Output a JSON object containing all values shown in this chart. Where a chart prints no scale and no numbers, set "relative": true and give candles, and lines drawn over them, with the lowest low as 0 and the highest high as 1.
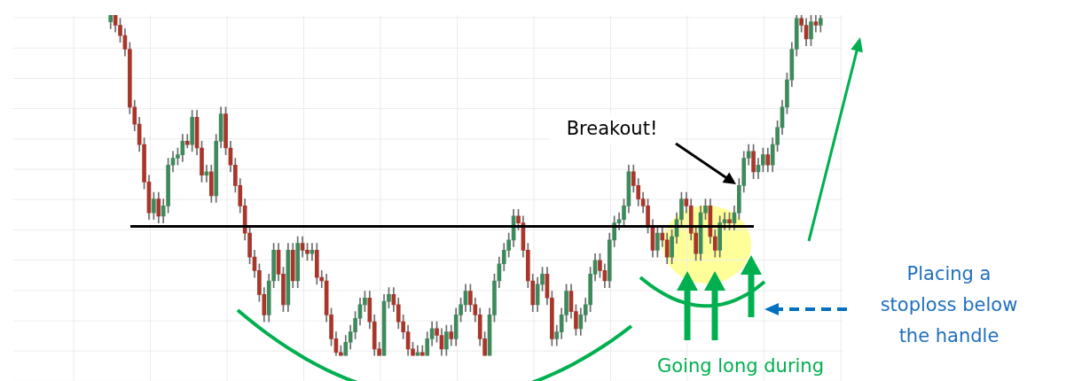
{
  "chart_data": {
    "type": "candlestick",
    "relative": true,
    "grid": true,
    "categories": [
      null,
      null,
      null,
      null,
      null,
      null,
      null,
      null,
      null,
      null,
      null,
      null,
      null,
      null,
      null,
      null,
      null,
      null,
      null,
      null,
      null,
      null,
      null,
      null,
      null,
      null,
      null,
      null,
      null,
      null,
      null,
      null,
      null,
      null,
      null,
      null,
      null,
      null,
      null,
      null,
      null,
      null,
      null,
      null,
      null,
      null,
      null,
      null,
      null,
      null,
      null,
      null,
      null,
      null,
      null,
      null,
      null,
      null,
      null,
      null,
      null,
      null,
      null,
      null,
      null,
      null,
      null,
      null,
      null,
      null,
      null,
      null,
      null,
      null,
      null,
      null,
      null,
      null,
      null,
      null,
      null,
      null,
      null,
      null,
      null,
      null,
      null,
      null,
      null,
      null,
      null,
      null,
      null,
      null,
      null,
      null,
      null,
      null,
      null,
      null,
      null,
      null,
      null,
      null,
      null,
      null,
      null,
      null,
      null,
      null,
      null,
      null,
      null,
      null,
      null,
      null,
      null,
      null,
      null,
      null,
      null,
      null,
      null,
      null,
      null,
      null,
      null,
      null,
      null,
      null,
      null,
      null,
      null,
      null,
      null,
      null,
      null,
      null,
      null,
      null,
      null,
      null,
      null,
      null,
      null,
      null,
      null,
      null,
      null
    ],
    "ohlc": [
      [
        0.98,
        1,
        0.96,
        1
      ],
      [
        1,
        1,
        0.95,
        0.97
      ],
      [
        0.97,
        0.99,
        0.92,
        0.94
      ],
      [
        0.94,
        0.96,
        0.88,
        0.9
      ],
      [
        0.9,
        0.92,
        0.71,
        0.73
      ],
      [
        0.73,
        0.75,
        0.66,
        0.68
      ],
      [
        0.68,
        0.7,
        0.6,
        0.62
      ],
      [
        0.62,
        0.64,
        0.49,
        0.51
      ],
      [
        0.51,
        0.53,
        0.4,
        0.42
      ],
      [
        0.42,
        0.48,
        0.4,
        0.46
      ],
      [
        0.46,
        0.48,
        0.39,
        0.41
      ],
      [
        0.41,
        0.46,
        0.39,
        0.44
      ],
      [
        0.44,
        0.58,
        0.42,
        0.56
      ],
      [
        0.56,
        0.6,
        0.54,
        0.58
      ],
      [
        0.58,
        0.61,
        0.56,
        0.59
      ],
      [
        0.59,
        0.65,
        0.57,
        0.63
      ],
      [
        0.63,
        0.65,
        0.61,
        0.62
      ],
      [
        0.62,
        0.72,
        0.6,
        0.7
      ],
      [
        0.7,
        0.72,
        0.59,
        0.61
      ],
      [
        0.61,
        0.63,
        0.51,
        0.53
      ],
      [
        0.53,
        0.56,
        0.51,
        0.54
      ],
      [
        0.54,
        0.56,
        0.45,
        0.47
      ],
      [
        0.47,
        0.65,
        0.45,
        0.63
      ],
      [
        0.63,
        0.73,
        0.61,
        0.71
      ],
      [
        0.71,
        0.73,
        0.59,
        0.61
      ],
      [
        0.61,
        0.63,
        0.54,
        0.56
      ],
      [
        0.56,
        0.58,
        0.48,
        0.5
      ],
      [
        0.5,
        0.52,
        0.42,
        0.44
      ],
      [
        0.44,
        0.46,
        0.34,
        0.36
      ],
      [
        0.36,
        0.38,
        0.27,
        0.29
      ],
      [
        0.29,
        0.31,
        0.23,
        0.25
      ],
      [
        0.25,
        0.27,
        0.16,
        0.18
      ],
      [
        0.18,
        0.2,
        0.1,
        0.12
      ],
      [
        0.12,
        0.24,
        0.1,
        0.22
      ],
      [
        0.22,
        0.33,
        0.2,
        0.31
      ],
      [
        0.31,
        0.33,
        0.22,
        0.24
      ],
      [
        0.24,
        0.26,
        0.13,
        0.15
      ],
      [
        0.15,
        0.33,
        0.13,
        0.31
      ],
      [
        0.31,
        0.33,
        0.2,
        0.22
      ],
      [
        0.22,
        0.35,
        0.2,
        0.33
      ],
      [
        0.33,
        0.35,
        0.29,
        0.31
      ],
      [
        0.31,
        0.33,
        0.28,
        0.3
      ],
      [
        0.3,
        0.33,
        0.28,
        0.31
      ],
      [
        0.31,
        0.33,
        0.21,
        0.23
      ],
      [
        0.23,
        0.25,
        0.2,
        0.22
      ],
      [
        0.22,
        0.24,
        0.1,
        0.12
      ],
      [
        0.12,
        0.14,
        0.03,
        0.05
      ],
      [
        0.05,
        0.07,
        0,
        0.01
      ],
      [
        0.01,
        0.03,
        0,
        0
      ],
      [
        0,
        0.06,
        0,
        0.04
      ],
      [
        0.04,
        0.09,
        0.02,
        0.07
      ],
      [
        0.07,
        0.13,
        0.05,
        0.11
      ],
      [
        0.11,
        0.17,
        0.09,
        0.15
      ],
      [
        0.15,
        0.19,
        0.13,
        0.17
      ],
      [
        0.17,
        0.19,
        0.08,
        0.1
      ],
      [
        0.1,
        0.12,
        0,
        0.02
      ],
      [
        0.02,
        0.04,
        0,
        0
      ],
      [
        0,
        0.18,
        0,
        0.16
      ],
      [
        0.16,
        0.2,
        0.14,
        0.18
      ],
      [
        0.18,
        0.2,
        0.13,
        0.15
      ],
      [
        0.15,
        0.17,
        0.08,
        0.1
      ],
      [
        0.1,
        0.12,
        0.05,
        0.07
      ],
      [
        0.07,
        0.09,
        0,
        0.02
      ],
      [
        0.02,
        0.04,
        0,
        0
      ],
      [
        0,
        0.03,
        0,
        0.01
      ],
      [
        0.01,
        0.03,
        0,
        0
      ],
      [
        0,
        0.07,
        0,
        0.05
      ],
      [
        0.05,
        0.1,
        0.03,
        0.08
      ],
      [
        0.08,
        0.1,
        0.04,
        0.06
      ],
      [
        0.06,
        0.08,
        0,
        0.02
      ],
      [
        0.02,
        0.09,
        0,
        0.07
      ],
      [
        0.07,
        0.09,
        0.03,
        0.05
      ],
      [
        0.05,
        0.14,
        0.03,
        0.12
      ],
      [
        0.12,
        0.17,
        0.1,
        0.15
      ],
      [
        0.15,
        0.21,
        0.13,
        0.19
      ],
      [
        0.19,
        0.21,
        0.13,
        0.15
      ],
      [
        0.15,
        0.17,
        0.1,
        0.12
      ],
      [
        0.12,
        0.14,
        0.03,
        0.05
      ],
      [
        0.05,
        0.07,
        0,
        0
      ],
      [
        0,
        0.14,
        0,
        0.12
      ],
      [
        0.12,
        0.24,
        0.1,
        0.22
      ],
      [
        0.22,
        0.29,
        0.2,
        0.27
      ],
      [
        0.27,
        0.33,
        0.25,
        0.31
      ],
      [
        0.31,
        0.36,
        0.29,
        0.34
      ],
      [
        0.34,
        0.43,
        0.32,
        0.41
      ],
      [
        0.41,
        0.43,
        0.37,
        0.39
      ],
      [
        0.39,
        0.41,
        0.29,
        0.31
      ],
      [
        0.31,
        0.33,
        0.2,
        0.22
      ],
      [
        0.22,
        0.24,
        0.13,
        0.15
      ],
      [
        0.15,
        0.23,
        0.13,
        0.21
      ],
      [
        0.21,
        0.26,
        0.19,
        0.24
      ],
      [
        0.24,
        0.26,
        0.15,
        0.17
      ],
      [
        0.17,
        0.19,
        0.03,
        0.05
      ],
      [
        0.05,
        0.09,
        0.03,
        0.07
      ],
      [
        0.07,
        0.14,
        0.05,
        0.12
      ],
      [
        0.12,
        0.21,
        0.1,
        0.19
      ],
      [
        0.19,
        0.21,
        0.11,
        0.13
      ],
      [
        0.13,
        0.15,
        0.06,
        0.08
      ],
      [
        0.08,
        0.14,
        0.06,
        0.12
      ],
      [
        0.12,
        0.17,
        0.1,
        0.15
      ],
      [
        0.15,
        0.26,
        0.13,
        0.24
      ],
      [
        0.24,
        0.3,
        0.22,
        0.28
      ],
      [
        0.28,
        0.3,
        0.23,
        0.25
      ],
      [
        0.25,
        0.27,
        0.2,
        0.22
      ],
      [
        0.22,
        0.36,
        0.2,
        0.34
      ],
      [
        0.34,
        0.41,
        0.32,
        0.39
      ],
      [
        0.39,
        0.42,
        0.37,
        0.4
      ],
      [
        0.4,
        0.46,
        0.38,
        0.44
      ],
      [
        0.44,
        0.56,
        0.42,
        0.54
      ],
      [
        0.54,
        0.56,
        0.48,
        0.5
      ],
      [
        0.5,
        0.52,
        0.44,
        0.46
      ],
      [
        0.46,
        0.48,
        0.42,
        0.44
      ],
      [
        0.44,
        0.46,
        0.36,
        0.38
      ],
      [
        0.38,
        0.4,
        0.29,
        0.31
      ],
      [
        0.31,
        0.38,
        0.29,
        0.36
      ],
      [
        0.36,
        0.38,
        0.32,
        0.34
      ],
      [
        0.34,
        0.36,
        0.27,
        0.29
      ],
      [
        0.29,
        0.37,
        0.27,
        0.35
      ],
      [
        0.35,
        0.42,
        0.33,
        0.4
      ],
      [
        0.4,
        0.48,
        0.38,
        0.46
      ],
      [
        0.46,
        0.48,
        0.42,
        0.44
      ],
      [
        0.44,
        0.46,
        0.34,
        0.36
      ],
      [
        0.36,
        0.38,
        0.28,
        0.3
      ],
      [
        0.3,
        0.44,
        0.28,
        0.42
      ],
      [
        0.42,
        0.46,
        0.4,
        0.44
      ],
      [
        0.44,
        0.46,
        0.33,
        0.35
      ],
      [
        0.35,
        0.37,
        0.29,
        0.31
      ],
      [
        0.31,
        0.41,
        0.29,
        0.39
      ],
      [
        0.39,
        0.42,
        0.37,
        0.4
      ],
      [
        0.4,
        0.42,
        0.37,
        0.39
      ],
      [
        0.39,
        0.44,
        0.37,
        0.42
      ],
      [
        0.42,
        0.52,
        0.4,
        0.5
      ],
      [
        0.5,
        0.6,
        0.48,
        0.58
      ],
      [
        0.58,
        0.62,
        0.56,
        0.6
      ],
      [
        0.6,
        0.62,
        0.52,
        0.54
      ],
      [
        0.54,
        0.58,
        0.52,
        0.56
      ],
      [
        0.56,
        0.61,
        0.54,
        0.59
      ],
      [
        0.59,
        0.61,
        0.54,
        0.56
      ],
      [
        0.56,
        0.64,
        0.54,
        0.62
      ],
      [
        0.62,
        0.69,
        0.6,
        0.67
      ],
      [
        0.67,
        0.75,
        0.65,
        0.73
      ],
      [
        0.73,
        0.83,
        0.71,
        0.81
      ],
      [
        0.81,
        0.92,
        0.79,
        0.9
      ],
      [
        0.9,
        1,
        0.88,
        0.99
      ],
      [
        0.99,
        1,
        0.95,
        0.97
      ],
      [
        0.97,
        0.99,
        0.91,
        0.93
      ],
      [
        0.93,
        1,
        0.91,
        0.98
      ],
      [
        0.98,
        1,
        0.95,
        0.97
      ],
      [
        0.97,
        1,
        0.95,
        0.99
      ]
    ],
    "ref_lines": [
      {
        "axis": "y",
        "value": 0.38,
        "color": "#000000"
      }
    ],
    "annotations": [
      "Breakout!",
      "Placing a stoploss below the handle",
      "Going long during"
    ]
  }
}
